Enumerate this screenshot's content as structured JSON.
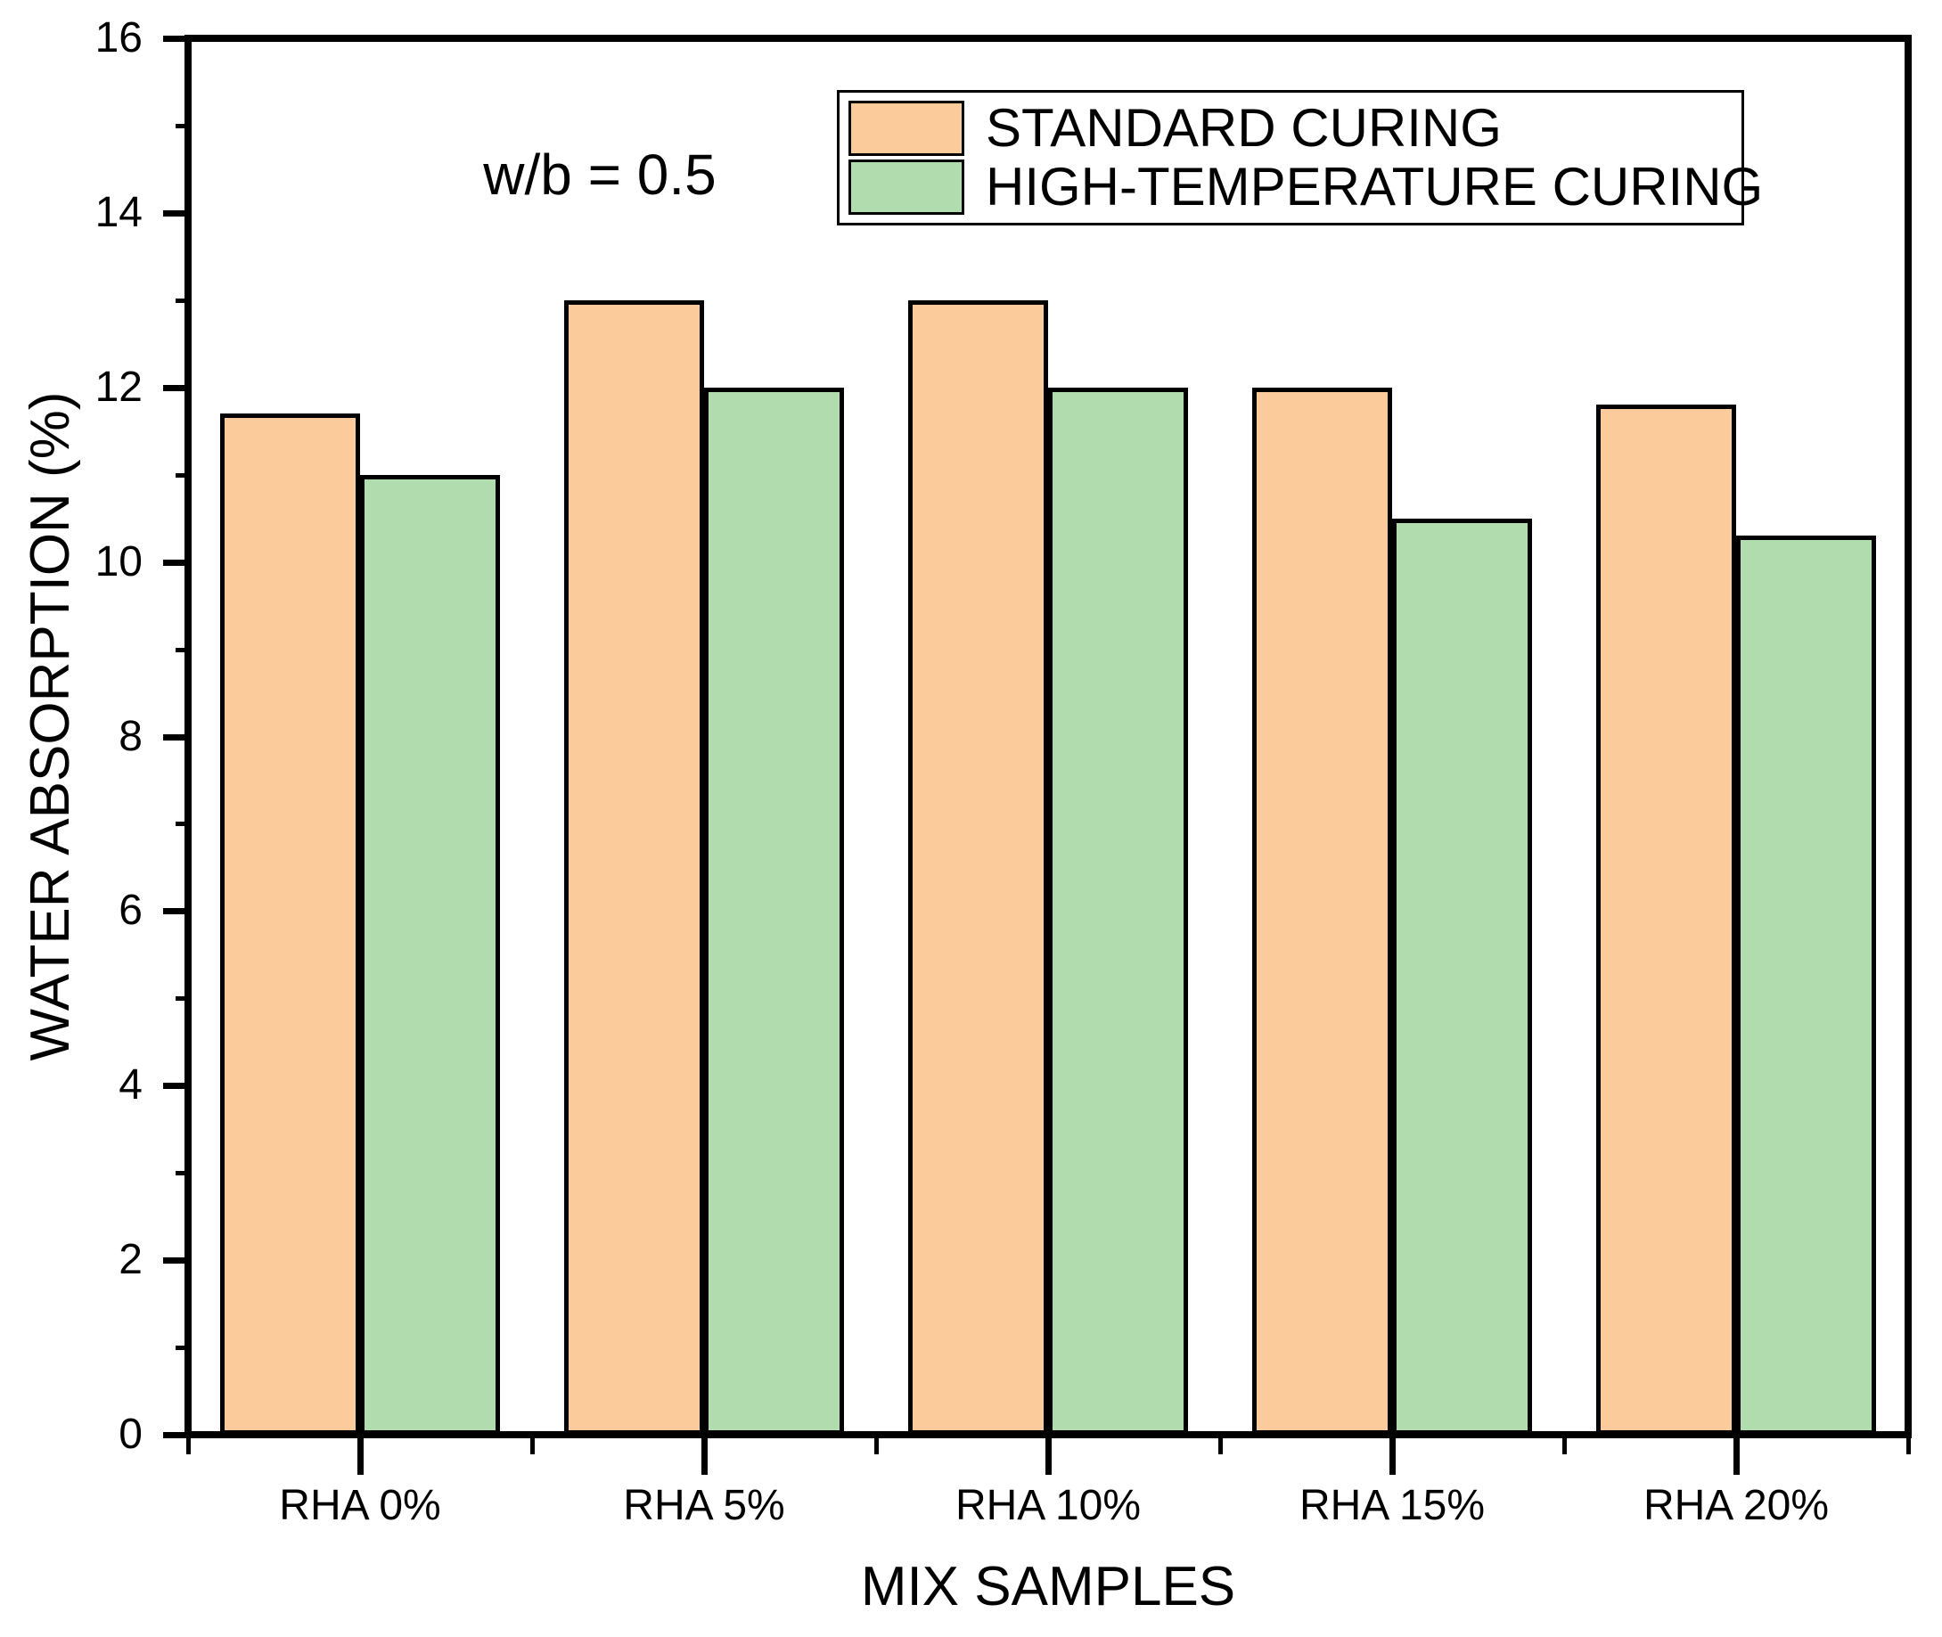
{
  "chart_data": {
    "type": "bar",
    "title": "",
    "xlabel": "MIX SAMPLES",
    "ylabel": "WATER ABSORPTION (%)",
    "annotation": "w/b = 0.5",
    "categories": [
      "RHA 0%",
      "RHA 5%",
      "RHA 10%",
      "RHA 15%",
      "RHA 20%"
    ],
    "series": [
      {
        "name": "STANDARD CURING",
        "color": "#FCCB9C",
        "values": [
          11.7,
          13.0,
          13.0,
          12.0,
          11.8
        ]
      },
      {
        "name": "HIGH-TEMPERATURE CURING",
        "color": "#B0DCAE",
        "values": [
          11.0,
          12.0,
          12.0,
          10.5,
          10.3
        ]
      }
    ],
    "ylim": [
      0,
      16
    ],
    "y_major_step": 2,
    "y_minor_step": 1,
    "y_tick_labels": [
      "0",
      "2",
      "4",
      "6",
      "8",
      "10",
      "12",
      "14",
      "16"
    ],
    "legend_position": "top-right",
    "grid": false,
    "bar_edge_color": "#000000",
    "axis_color": "#000000",
    "background_color": "#FFFFFF"
  }
}
